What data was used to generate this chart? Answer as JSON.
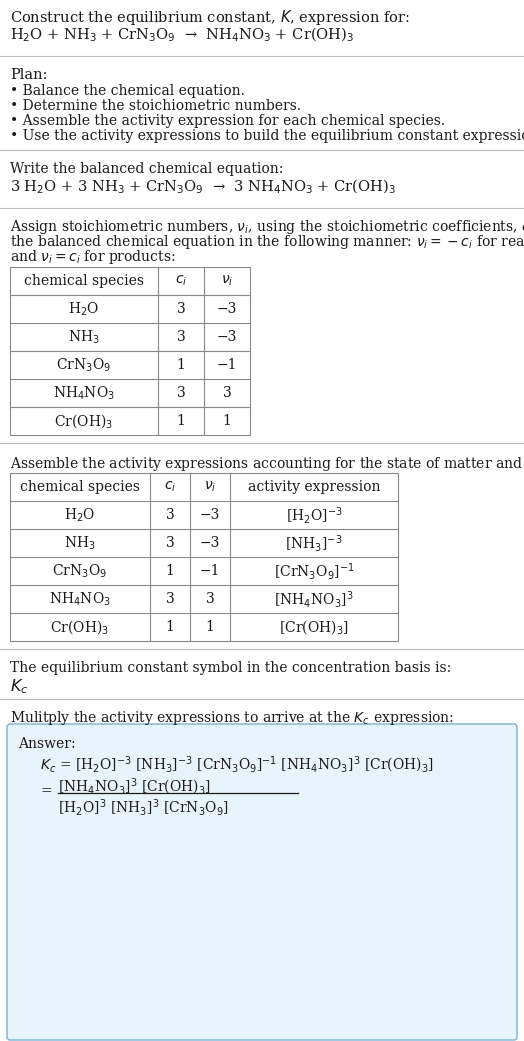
{
  "bg_color": "#ffffff",
  "answer_bg": "#e8f4fc",
  "answer_border": "#7ab0d4",
  "text_color": "#1a1a1a",
  "line_color": "#bbbbbb",
  "table_border": "#888888",
  "title_line1": "Construct the equilibrium constant, $K$, expression for:",
  "title_line2_plain": "H",
  "title_eq_parts": [
    "H$_2$O + NH$_3$ + CrN$_3$O$_9$",
    " → ",
    "NH$_4$NO$_3$ + Cr(OH)$_3$"
  ],
  "plan_header": "Plan:",
  "plan_items": [
    "• Balance the chemical equation.",
    "• Determine the stoichiometric numbers.",
    "• Assemble the activity expression for each chemical species.",
    "• Use the activity expressions to build the equilibrium constant expression."
  ],
  "balanced_header": "Write the balanced chemical equation:",
  "balanced_eq": "3 H$_2$O + 3 NH$_3$ + CrN$_3$O$_9$  →  3 NH$_4$NO$_3$ + Cr(OH)$_3$",
  "stoich_intro_lines": [
    "Assign stoichiometric numbers, $\\nu_i$, using the stoichiometric coefficients, $c_i$, from",
    "the balanced chemical equation in the following manner: $\\nu_i = -c_i$ for reactants",
    "and $\\nu_i = c_i$ for products:"
  ],
  "table1_headers": [
    "chemical species",
    "$c_i$",
    "$\\nu_i$"
  ],
  "table1_rows": [
    [
      "H$_2$O",
      "3",
      "−3"
    ],
    [
      "NH$_3$",
      "3",
      "−3"
    ],
    [
      "CrN$_3$O$_9$",
      "1",
      "−1"
    ],
    [
      "NH$_4$NO$_3$",
      "3",
      "3"
    ],
    [
      "Cr(OH)$_3$",
      "1",
      "1"
    ]
  ],
  "activity_intro": "Assemble the activity expressions accounting for the state of matter and $\\nu_i$:",
  "table2_headers": [
    "chemical species",
    "$c_i$",
    "$\\nu_i$",
    "activity expression"
  ],
  "table2_rows": [
    [
      "H$_2$O",
      "3",
      "−3",
      "[H$_2$O]$^{-3}$"
    ],
    [
      "NH$_3$",
      "3",
      "−3",
      "[NH$_3$]$^{-3}$"
    ],
    [
      "CrN$_3$O$_9$",
      "1",
      "−1",
      "[CrN$_3$O$_9$]$^{-1}$"
    ],
    [
      "NH$_4$NO$_3$",
      "3",
      "3",
      "[NH$_4$NO$_3$]$^3$"
    ],
    [
      "Cr(OH)$_3$",
      "1",
      "1",
      "[Cr(OH)$_3$]"
    ]
  ],
  "kc_intro": "The equilibrium constant symbol in the concentration basis is:",
  "kc_symbol": "$K_c$",
  "multiply_intro": "Mulitply the activity expressions to arrive at the $K_c$ expression:",
  "answer_label": "Answer:",
  "answer_line1": "$K_c$ = [H$_2$O]$^{-3}$ [NH$_3$]$^{-3}$ [CrN$_3$O$_9$]$^{-1}$ [NH$_4$NO$_3$]$^3$ [Cr(OH)$_3$]",
  "frac_eq_sign": "=",
  "frac_numerator": "[NH$_4$NO$_3$]$^3$ [Cr(OH)$_3$]",
  "frac_denominator": "[H$_2$O]$^3$ [NH$_3$]$^3$ [CrN$_3$O$_9$]",
  "font_size": 10.5,
  "small_font": 10.0
}
